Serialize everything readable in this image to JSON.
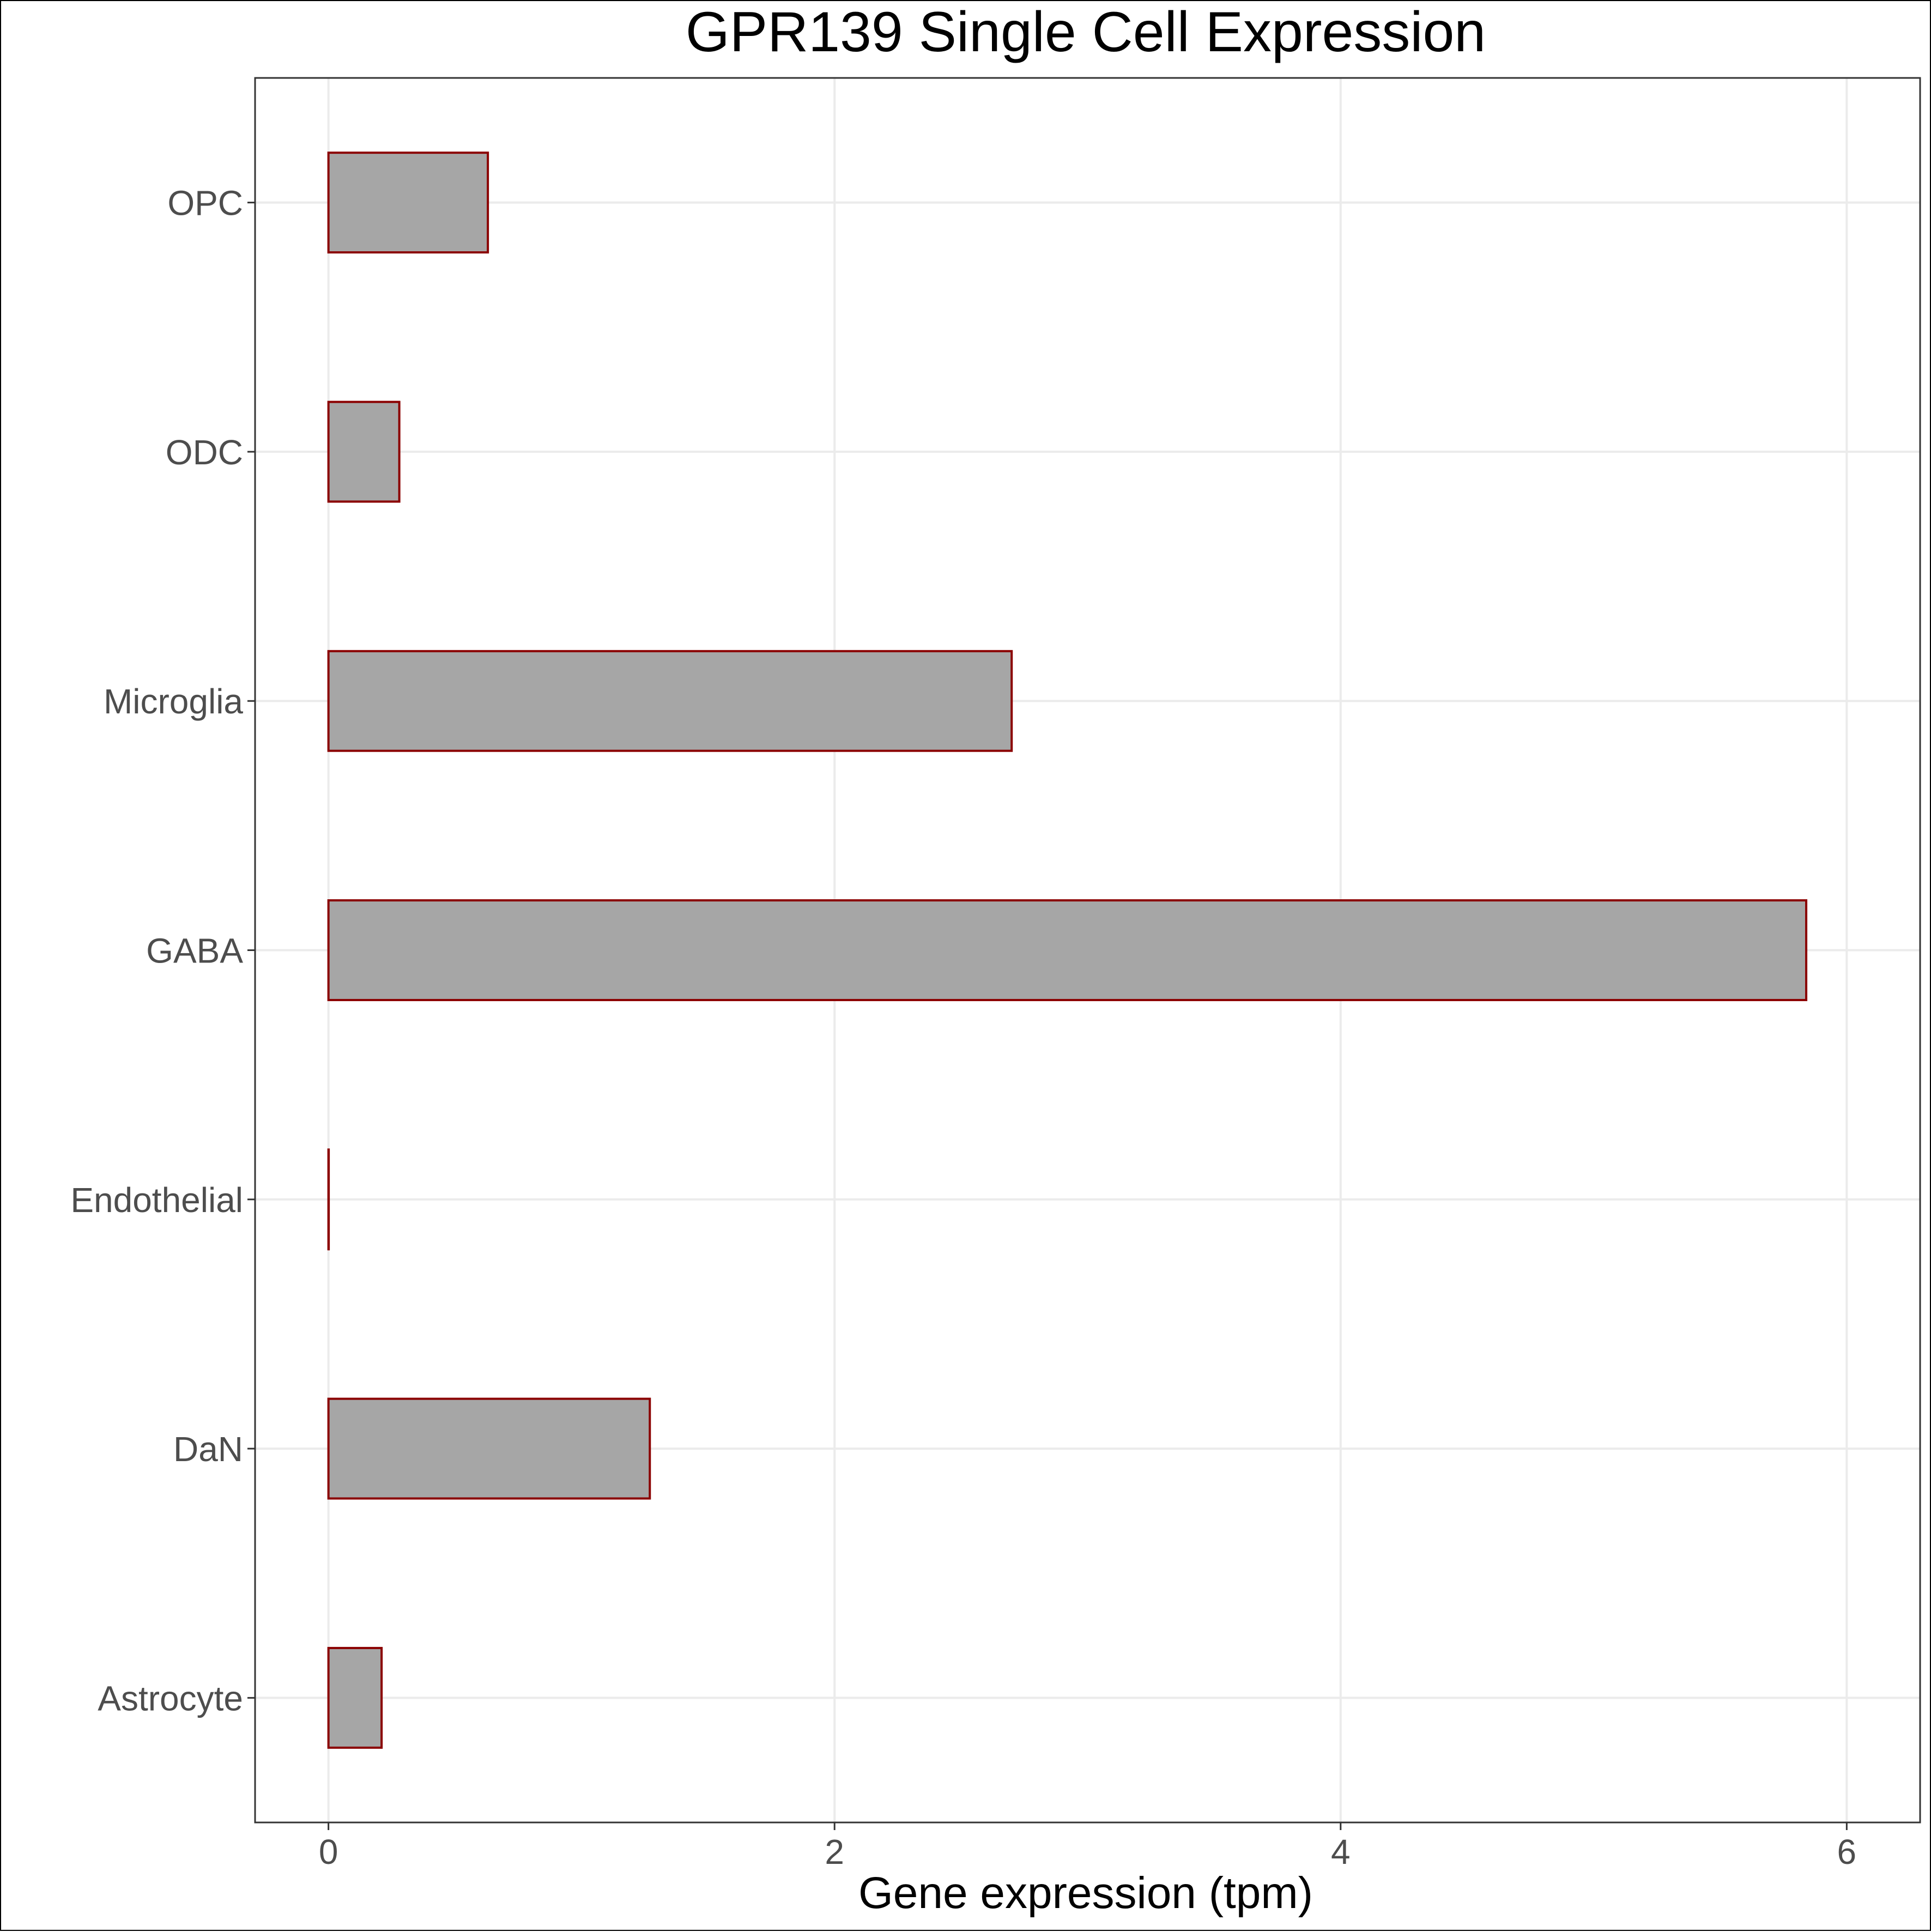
{
  "chart_data": {
    "type": "bar",
    "orientation": "horizontal",
    "title": "GPR139 Single Cell Expression",
    "xlabel": "Gene expression (tpm)",
    "ylabel": "",
    "categories": [
      "Astrocyte",
      "DaN",
      "Endothelial",
      "GABA",
      "Microglia",
      "ODC",
      "OPC"
    ],
    "values": [
      0.21,
      1.27,
      0.0,
      5.84,
      2.7,
      0.28,
      0.63
    ],
    "xlim": [
      -0.29,
      6.29
    ],
    "xticks": [
      0,
      2,
      4,
      6
    ],
    "grid": true,
    "legend": "none",
    "colors": {
      "bar_fill": "#a6a6a6",
      "bar_stroke": "#8b0000"
    }
  }
}
